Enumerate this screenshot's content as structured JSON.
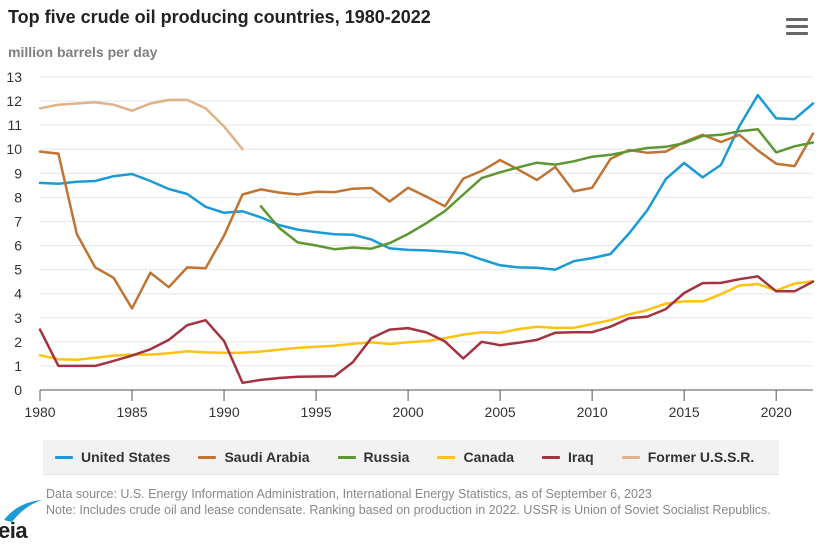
{
  "header": {
    "title": "Top five crude oil producing countries, 1980-2022",
    "units": "million barrels per day",
    "menu_icon": "hamburger-menu-icon"
  },
  "legend": [
    {
      "name": "United States",
      "color": "#1a9ad6"
    },
    {
      "name": "Saudi Arabia",
      "color": "#bf7434"
    },
    {
      "name": "Russia",
      "color": "#5d9731"
    },
    {
      "name": "Canada",
      "color": "#ffc20e"
    },
    {
      "name": "Iraq",
      "color": "#a33340"
    },
    {
      "name": "Former U.S.S.R.",
      "color": "#dfb387"
    }
  ],
  "footer": {
    "source": "Data source: U.S. Energy Information Administration, International Energy Statistics, as of September 6, 2023",
    "note": "Note: Includes crude oil and lease condensate. Ranking based on production in 2022. USSR is Union of Soviet Socialist Republics.",
    "logo_text": "eia"
  },
  "chart_data": {
    "type": "line",
    "title": "Top five crude oil producing countries, 1980-2022",
    "xlabel": "",
    "ylabel": "million barrels per day",
    "xlim": [
      1980,
      2022
    ],
    "ylim": [
      0,
      13
    ],
    "grid": true,
    "legend_position": "bottom",
    "x_ticks": [
      1980,
      1985,
      1990,
      1995,
      2000,
      2005,
      2010,
      2015,
      2020
    ],
    "y_ticks": [
      0,
      1,
      2,
      3,
      4,
      5,
      6,
      7,
      8,
      9,
      10,
      11,
      12,
      13
    ],
    "series": [
      {
        "name": "United States",
        "color": "#1a9ad6",
        "start_year": 1980,
        "values": [
          8.6,
          8.57,
          8.65,
          8.68,
          8.88,
          8.97,
          8.68,
          8.35,
          8.14,
          7.61,
          7.36,
          7.42,
          7.17,
          6.85,
          6.66,
          6.56,
          6.47,
          6.45,
          6.25,
          5.88,
          5.82,
          5.8,
          5.75,
          5.68,
          5.42,
          5.18,
          5.09,
          5.08,
          5.0,
          5.35,
          5.48,
          5.65,
          6.5,
          7.47,
          8.76,
          9.43,
          8.83,
          9.35,
          10.96,
          12.25,
          11.28,
          11.25,
          11.9
        ]
      },
      {
        "name": "Saudi Arabia",
        "color": "#bf7434",
        "start_year": 1980,
        "values": [
          9.9,
          9.82,
          6.48,
          5.09,
          4.66,
          3.39,
          4.87,
          4.27,
          5.09,
          5.06,
          6.41,
          8.12,
          8.33,
          8.2,
          8.12,
          8.23,
          8.22,
          8.36,
          8.39,
          7.83,
          8.4,
          8.03,
          7.63,
          8.78,
          9.1,
          9.55,
          9.15,
          8.72,
          9.26,
          8.25,
          8.4,
          9.6,
          9.97,
          9.85,
          9.9,
          10.3,
          10.6,
          10.3,
          10.6,
          9.95,
          9.4,
          9.3,
          10.65
        ]
      },
      {
        "name": "Russia",
        "color": "#5d9731",
        "start_year": 1992,
        "values": [
          7.63,
          6.73,
          6.13,
          6.0,
          5.85,
          5.92,
          5.87,
          6.1,
          6.48,
          6.93,
          7.43,
          8.12,
          8.8,
          9.04,
          9.25,
          9.44,
          9.36,
          9.5,
          9.69,
          9.77,
          9.92,
          10.05,
          10.1,
          10.25,
          10.55,
          10.6,
          10.75,
          10.83,
          9.87,
          10.12,
          10.28
        ]
      },
      {
        "name": "Canada",
        "color": "#ffc20e",
        "start_year": 1980,
        "values": [
          1.44,
          1.28,
          1.26,
          1.34,
          1.43,
          1.47,
          1.47,
          1.53,
          1.61,
          1.56,
          1.55,
          1.55,
          1.6,
          1.68,
          1.75,
          1.8,
          1.84,
          1.92,
          1.98,
          1.91,
          1.98,
          2.03,
          2.15,
          2.3,
          2.4,
          2.37,
          2.53,
          2.63,
          2.58,
          2.58,
          2.74,
          2.9,
          3.14,
          3.32,
          3.59,
          3.68,
          3.68,
          3.98,
          4.34,
          4.4,
          4.13,
          4.42,
          4.52
        ]
      },
      {
        "name": "Iraq",
        "color": "#a33340",
        "start_year": 1980,
        "values": [
          2.51,
          1.0,
          1.0,
          1.0,
          1.21,
          1.43,
          1.69,
          2.08,
          2.69,
          2.9,
          2.04,
          0.3,
          0.42,
          0.5,
          0.55,
          0.56,
          0.57,
          1.16,
          2.15,
          2.51,
          2.57,
          2.39,
          2.02,
          1.31,
          2.0,
          1.86,
          1.96,
          2.08,
          2.38,
          2.4,
          2.4,
          2.63,
          2.98,
          3.05,
          3.36,
          4.03,
          4.44,
          4.45,
          4.6,
          4.72,
          4.1,
          4.1,
          4.5
        ]
      },
      {
        "name": "Former U.S.S.R.",
        "color": "#dfb387",
        "start_year": 1980,
        "values": [
          11.7,
          11.85,
          11.9,
          11.95,
          11.85,
          11.6,
          11.9,
          12.05,
          12.05,
          11.7,
          10.95,
          10.0
        ]
      }
    ]
  }
}
